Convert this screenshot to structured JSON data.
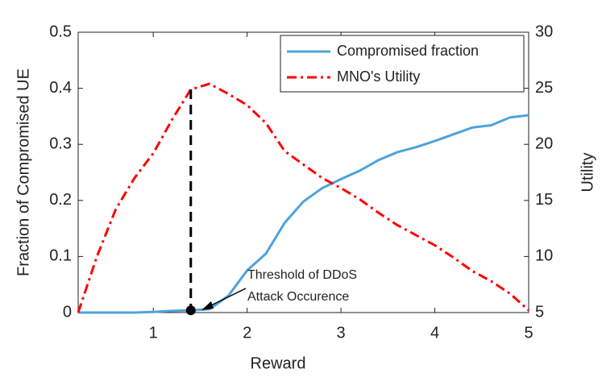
{
  "chart_data": {
    "type": "line",
    "x_label": "Reward",
    "y_label": "Fraction of Compromised UE",
    "y2_label": "Utility",
    "x": [
      0.2,
      0.4,
      0.6,
      0.8,
      1.0,
      1.2,
      1.4,
      1.6,
      1.8,
      2.0,
      2.2,
      2.4,
      2.6,
      2.8,
      3.0,
      3.2,
      3.4,
      3.6,
      3.8,
      4.0,
      4.2,
      4.4,
      4.6,
      4.8,
      5.0
    ],
    "series": [
      {
        "name": "Compromised fraction",
        "color": "#4da3dc",
        "dash": "solid",
        "axis": "y",
        "values": [
          0,
          0,
          0,
          0,
          0.001,
          0.003,
          0.004,
          0.006,
          0.03,
          0.075,
          0.105,
          0.16,
          0.198,
          0.222,
          0.238,
          0.253,
          0.272,
          0.286,
          0.295,
          0.306,
          0.318,
          0.33,
          0.334,
          0.348,
          0.352
        ]
      },
      {
        "name": "MNO's Utility",
        "color": "#ff0000",
        "dash": "dashdot",
        "axis": "y2",
        "values": [
          5,
          10,
          14.2,
          17,
          19.2,
          22.2,
          24.9,
          25.4,
          24.5,
          23.5,
          21.9,
          19.4,
          18.2,
          17.0,
          16.1,
          15.1,
          13.9,
          12.8,
          11.9,
          11.0,
          9.9,
          8.7,
          7.8,
          6.7,
          5.2
        ]
      }
    ],
    "xlim": [
      0.2,
      5
    ],
    "xticks": [
      1,
      2,
      3,
      4,
      5
    ],
    "ylim": [
      0,
      0.5
    ],
    "yticks": [
      0,
      0.1,
      0.2,
      0.3,
      0.4,
      0.5
    ],
    "y2lim": [
      5,
      30
    ],
    "y2ticks": [
      5,
      10,
      15,
      20,
      25,
      30
    ],
    "legend": "top-right",
    "annotation": {
      "lines": [
        "Threshold of DDoS",
        "Attack Occurence"
      ],
      "x": 1.4
    }
  }
}
